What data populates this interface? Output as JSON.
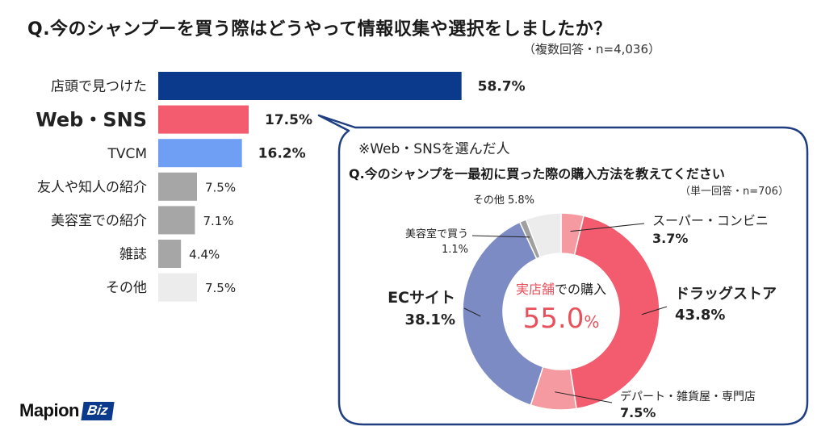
{
  "header": {
    "title": "Q.今のシャンプーを買う際はどうやって情報収集や選択をしましたか？",
    "subtitle": "（複数回答・n=4,036）"
  },
  "callout": {
    "note": "※Web・SNSを選んだ人",
    "title": "Q.今のシャンプを一最初に買った際の購入方法を教えてください",
    "subtitle": "（単一回答・n=706）",
    "center_label_prefix": "実店舗",
    "center_label_suffix": "での購入",
    "center_value": "55.0",
    "center_unit": "%"
  },
  "logo": {
    "main": "Mapion",
    "badge": "Biz"
  },
  "colors": {
    "navy": "#0b3a8c",
    "red": "#f25c6e",
    "lightblue": "#6e9ff5",
    "gray": "#a6a6a6",
    "lightgray": "#ececec",
    "pink": "#f59aa0",
    "darkgray": "#a0a0a0",
    "slate": "#7d8bc4",
    "callout_border": "#1f3f80",
    "highlight_text": "#e8505b"
  },
  "chart_data": [
    {
      "type": "bar",
      "orientation": "horizontal",
      "categories": [
        "店頭で見つけた",
        "Web・SNS",
        "TVCM",
        "友人や知人の紹介",
        "美容室での紹介",
        "雑誌",
        "その他"
      ],
      "values": [
        58.7,
        17.5,
        16.2,
        7.5,
        7.1,
        4.4,
        7.5
      ],
      "value_labels": [
        "58.7%",
        "17.5%",
        "16.2%",
        "7.5%",
        "7.1%",
        "4.4%",
        "7.5%"
      ],
      "bar_colors": [
        "#0b3a8c",
        "#f25c6e",
        "#6e9ff5",
        "#a6a6a6",
        "#a6a6a6",
        "#a6a6a6",
        "#ececec"
      ],
      "emphasized": [
        true,
        true,
        true,
        false,
        false,
        false,
        false
      ],
      "grid": false,
      "legend": "none"
    },
    {
      "type": "pie",
      "style": "donut",
      "categories": [
        "スーパー・コンビニ",
        "ドラッグストア",
        "デパート・雑貨屋・専門店",
        "ECサイト",
        "美容室で買う",
        "その他"
      ],
      "values": [
        3.7,
        43.8,
        7.5,
        38.1,
        1.1,
        5.8
      ],
      "value_labels": [
        "3.7%",
        "43.8%",
        "7.5%",
        "38.1%",
        "1.1%",
        "5.8%"
      ],
      "colors": [
        "#f59aa0",
        "#f25c6e",
        "#f59aa0",
        "#7d8bc4",
        "#a0a0a0",
        "#ececec"
      ],
      "legend": "none"
    }
  ]
}
